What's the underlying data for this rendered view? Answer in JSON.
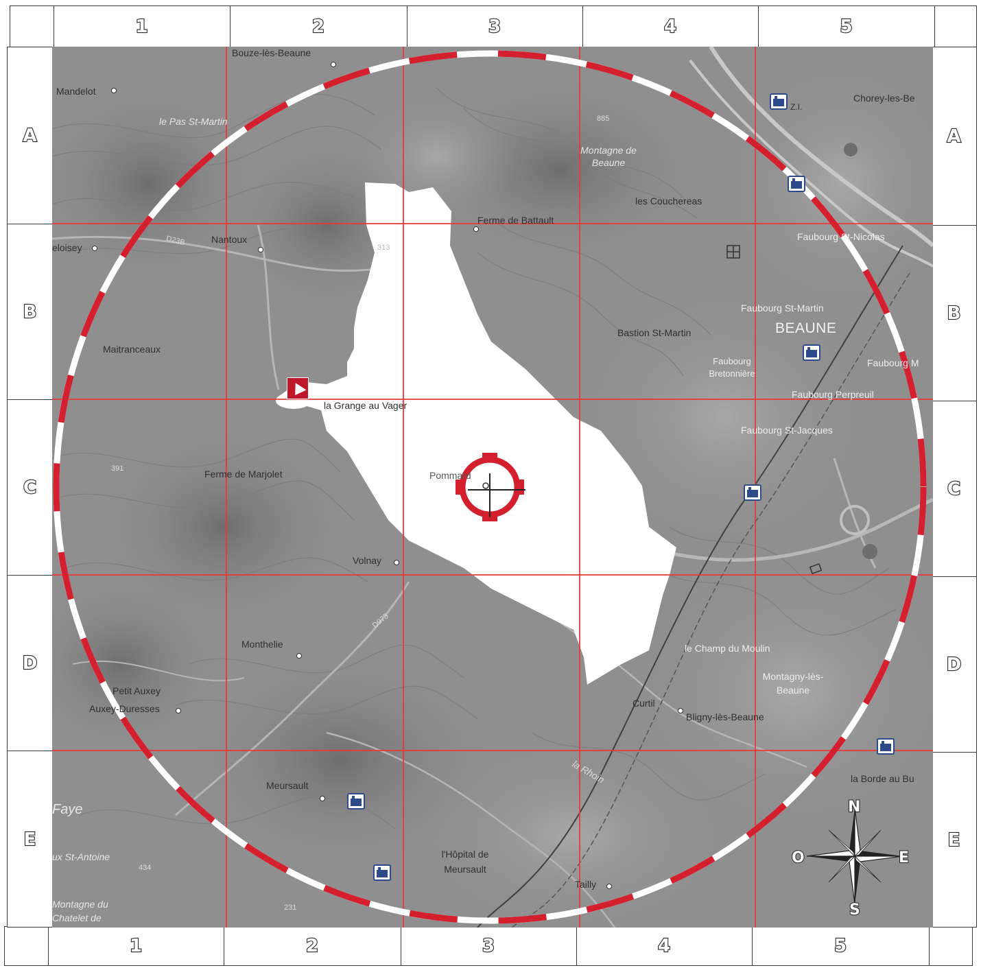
{
  "grid": {
    "columns": [
      "1",
      "2",
      "3",
      "4",
      "5"
    ],
    "rows": [
      "A",
      "B",
      "C",
      "D",
      "E"
    ]
  },
  "places": {
    "bouze": "Bouze-lès-Beaune",
    "mandelot": "Mandelot",
    "pas_st_martin": "le Pas St-Martin",
    "montagne_beaune": "Montagne de Beaune",
    "chorey": "Chorey-les-Be",
    "zi": "Z.I.",
    "couchereas": "les Couchereas",
    "ferme_battault": "Ferme de Battault",
    "nantoux": "Nantoux",
    "d23b": "D23B",
    "meloisey": "eloisey",
    "faubourg_st_nicolas": "Faubourg St-Nicolas",
    "faubourg_st_martin": "Faubourg St-Martin",
    "beaune": "BEAUNE",
    "bastion": "Bastion St-Martin",
    "faubourg_bretonniere": "Faubourg Bretonnière",
    "faubourg_m": "Faubourg M",
    "maitranceaux": "Maitranceaux",
    "grange": "la Grange au Vager",
    "faubourg_perpreuil": "Faubourg Perpreuil",
    "faubourg_st_jacques": "Faubourg St-Jacques",
    "ferme_marjolet": "Ferme de Marjolet",
    "pommard": "Pommard",
    "volnay": "Volnay",
    "d973": "D973",
    "monthelie": "Monthelie",
    "champ_moulin": "le Champ du Moulin",
    "montagny": "Montagny-lès-Beaune",
    "petit_auxey": "Petit Auxey",
    "auxey": "Auxey-Duresses",
    "curtil": "Curtil",
    "bligny": "Bligny-lès-Beaune",
    "meursault": "Meursault",
    "borde": "la Borde au Bu",
    "faye": "Faye",
    "st_antoine": "ux St-Antoine",
    "montagne_chatelet": "Montagne du Chatelet de",
    "hopital": "l'Hôpital de Meursault",
    "tailly": "Tailly",
    "rhoin": "la Rhoin",
    "h885": "885",
    "h391": "391",
    "h434": "434",
    "h231": "231",
    "h313": "313"
  },
  "compass": {
    "north": "N",
    "south": "S",
    "east": "E",
    "west": "O"
  },
  "colors": {
    "accent_red": "#d4202e",
    "grid_red": "#e63a3a",
    "frame": "#3a3a3a",
    "map_gray": "#8f8f8f",
    "factory_blue": "#2d4b8a"
  }
}
